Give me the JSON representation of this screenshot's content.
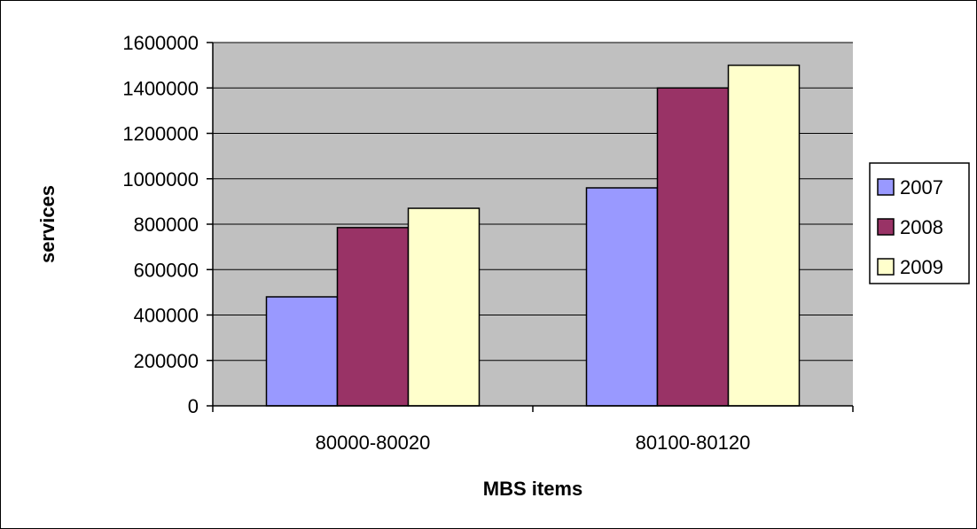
{
  "chart_data": {
    "type": "bar",
    "title": "",
    "xlabel": "MBS items",
    "ylabel": "services",
    "categories": [
      "80000-80020",
      "80100-80120"
    ],
    "ylim": [
      0,
      1600000
    ],
    "yticks": [
      0,
      200000,
      400000,
      600000,
      800000,
      1000000,
      1200000,
      1400000,
      1600000
    ],
    "ytick_labels": [
      "0",
      "200000",
      "400000",
      "600000",
      "800000",
      "1000000",
      "1200000",
      "1400000",
      "1600000"
    ],
    "grid": true,
    "legend_position": "right",
    "plot_background": "#c0c0c0",
    "series": [
      {
        "name": "2007",
        "color": "#9999ff",
        "values": [
          480000,
          960000
        ]
      },
      {
        "name": "2008",
        "color": "#993366",
        "values": [
          785000,
          1400000
        ]
      },
      {
        "name": "2009",
        "color": "#ffffcc",
        "values": [
          870000,
          1500000
        ]
      }
    ]
  }
}
